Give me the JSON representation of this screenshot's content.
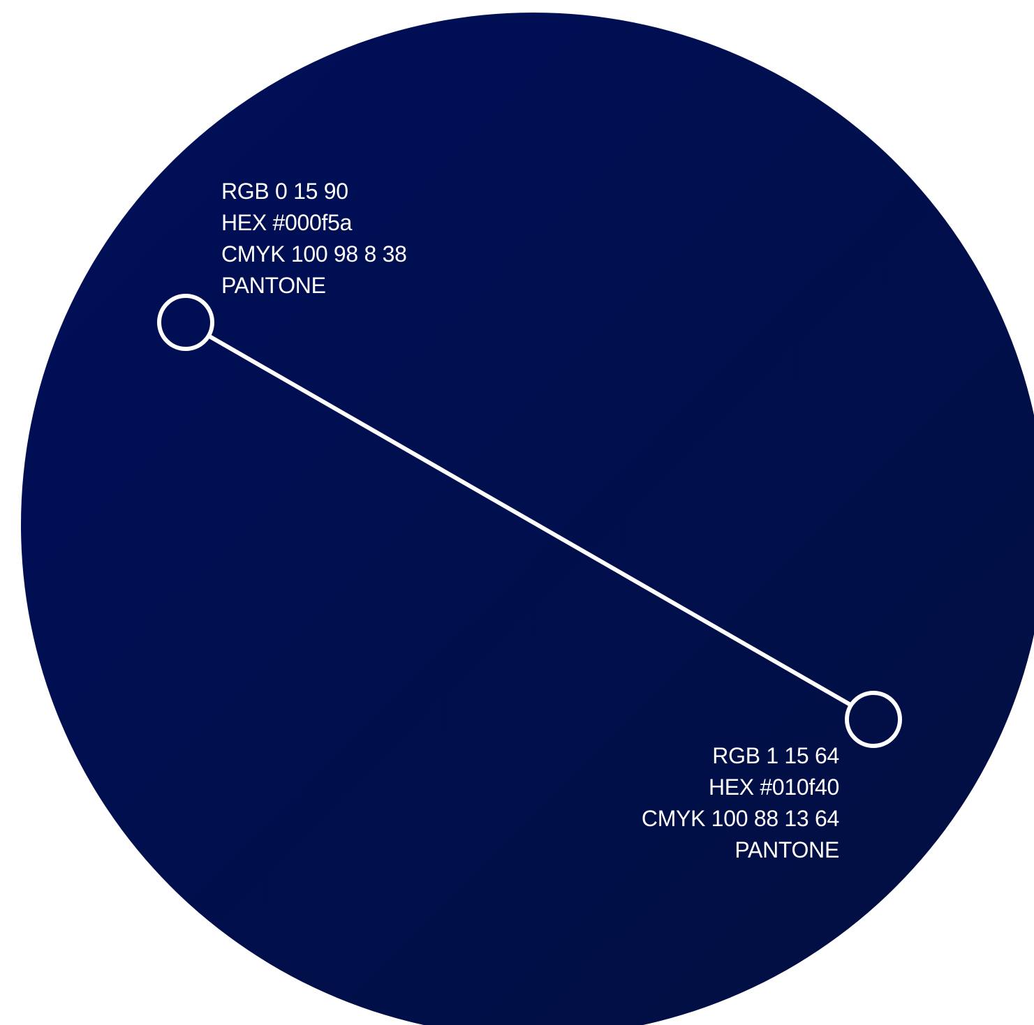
{
  "swatch_start": {
    "rgb": "RGB 0 15 90",
    "hex": "HEX #000f5a",
    "cmyk": "CMYK 100 98 8 38",
    "pantone": "PANTONE",
    "color": "#000f5a"
  },
  "swatch_end": {
    "rgb": "RGB 1 15 64",
    "hex": "HEX #010f40",
    "cmyk": "CMYK 100 88 13 64",
    "pantone": "PANTONE",
    "color": "#010f40"
  },
  "colors": {
    "marker": "#ffffff",
    "text": "#ffffff"
  }
}
